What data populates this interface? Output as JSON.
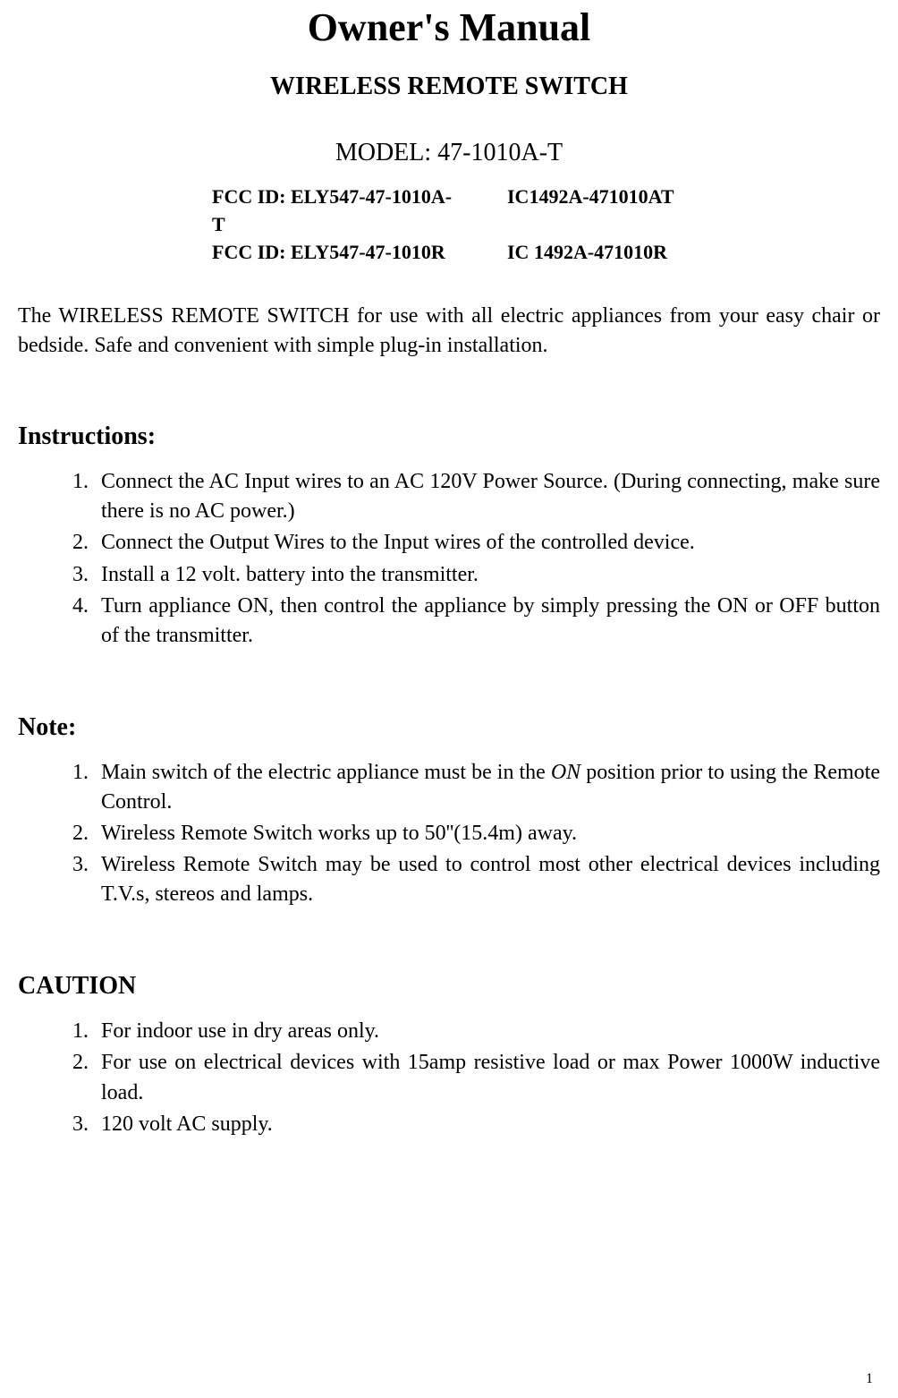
{
  "title": "Owner's Manual",
  "subtitle": "WIRELESS REMOTE SWITCH",
  "model": "MODEL: 47-1010A-T",
  "ids": {
    "row1_left": "FCC ID: ELY547-47-1010A-T",
    "row1_right": "IC1492A-471010AT",
    "row2_left": "FCC ID: ELY547-47-1010R",
    "row2_right": "IC 1492A-471010R"
  },
  "intro": "The WIRELESS REMOTE SWITCH for use with all electric appliances from your easy chair or bedside. Safe and convenient with simple plug-in installation.",
  "sections": {
    "instructions": {
      "heading": "Instructions:",
      "items": [
        "Connect the AC Input wires to an AC 120V Power Source. (During connecting, make sure there is no AC power.)",
        "Connect the Output Wires to the Input wires of the controlled device.",
        "Install a 12 volt. battery into the transmitter.",
        "Turn appliance ON, then control the appliance by simply pressing the ON or OFF button of the transmitter."
      ]
    },
    "note": {
      "heading": "Note:",
      "items_html": [
        "Main switch of the electric appliance must be in the <span class=\"italic\">ON</span> position prior to using the Remote Control.",
        "Wireless Remote Switch works up to 50''(15.4m) away.",
        "Wireless Remote Switch may be used to control most other electrical devices including T.V.s, stereos and lamps."
      ]
    },
    "caution": {
      "heading": "CAUTION",
      "items": [
        "For indoor use in dry areas only.",
        "For use on electrical devices with 15amp resistive load or max Power 1000W inductive load.",
        "120 volt AC supply."
      ]
    }
  },
  "page_number": "1",
  "styles": {
    "background_color": "#ffffff",
    "text_color": "#000000",
    "font_family": "Times New Roman",
    "title_fontsize": 44,
    "subtitle_fontsize": 28,
    "model_fontsize": 28,
    "ids_fontsize": 22,
    "body_fontsize": 24,
    "heading_fontsize": 28
  }
}
